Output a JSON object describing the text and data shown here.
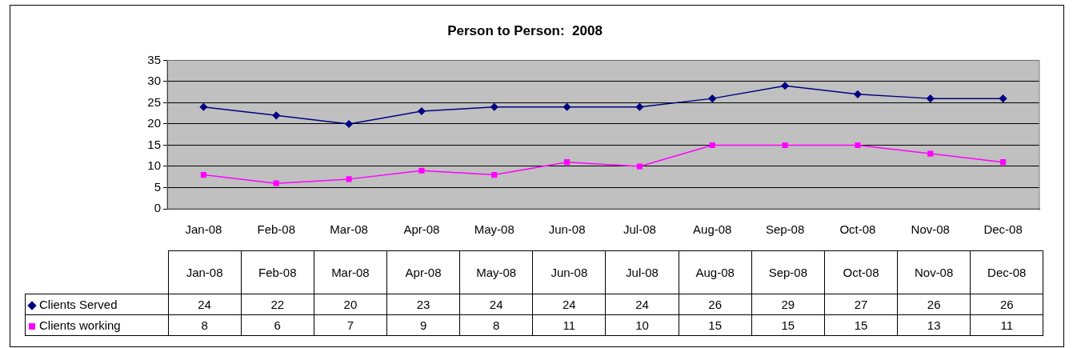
{
  "chart_data": {
    "type": "line",
    "title": "Person to Person:  2008",
    "categories": [
      "Jan-08",
      "Feb-08",
      "Mar-08",
      "Apr-08",
      "May-08",
      "Jun-08",
      "Jul-08",
      "Aug-08",
      "Sep-08",
      "Oct-08",
      "Nov-08",
      "Dec-08"
    ],
    "series": [
      {
        "name": "Clients Served",
        "color": "#000080",
        "marker": "diamond",
        "values": [
          24,
          22,
          20,
          23,
          24,
          24,
          24,
          26,
          29,
          27,
          26,
          26
        ]
      },
      {
        "name": "Clients working",
        "color": "#ff00ff",
        "marker": "square",
        "values": [
          8,
          6,
          7,
          9,
          8,
          11,
          10,
          15,
          15,
          15,
          13,
          11
        ]
      }
    ],
    "ylim": [
      0,
      35
    ],
    "yticks": [
      0,
      5,
      10,
      15,
      20,
      25,
      30,
      35
    ],
    "grid": "y",
    "legend": "bottom left",
    "data_labels": true
  }
}
